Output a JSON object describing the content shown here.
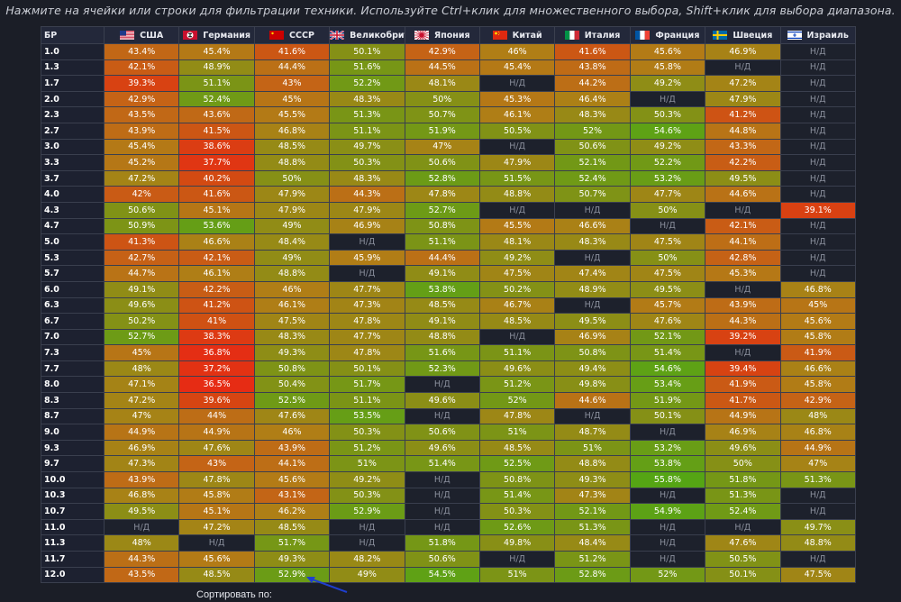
{
  "hint": "Нажмите на ячейки или строки для фильтрации техники. Используйте Ctrl+клик для множественного выбора, Shift+клик для выбора диапазона.",
  "na_label": "Н/Д",
  "br_header": "БР",
  "sort_label": "Сортировать по:",
  "nations": [
    {
      "name": "США",
      "flag": "flag-usa-icon"
    },
    {
      "name": "Германия",
      "flag": "flag-germany-icon"
    },
    {
      "name": "СССР",
      "flag": "flag-ussr-icon"
    },
    {
      "name": "Великобритания",
      "flag": "flag-uk-icon"
    },
    {
      "name": "Япония",
      "flag": "flag-japan-icon"
    },
    {
      "name": "Китай",
      "flag": "flag-china-icon"
    },
    {
      "name": "Италия",
      "flag": "flag-italy-icon"
    },
    {
      "name": "Франция",
      "flag": "flag-france-icon"
    },
    {
      "name": "Швеция",
      "flag": "flag-sweden-icon"
    },
    {
      "name": "Израиль",
      "flag": "flag-israel-icon"
    }
  ],
  "rows": [
    {
      "br": "1.0",
      "values": [
        "43.4%",
        "45.4%",
        "41.6%",
        "50.1%",
        "42.9%",
        "46%",
        "41.6%",
        "45.6%",
        "46.9%",
        null
      ]
    },
    {
      "br": "1.3",
      "values": [
        "42.1%",
        "48.9%",
        "44.4%",
        "51.6%",
        "44.5%",
        "45.4%",
        "43.8%",
        "45.8%",
        null,
        null
      ]
    },
    {
      "br": "1.7",
      "values": [
        "39.3%",
        "51.1%",
        "43%",
        "52.2%",
        "48.1%",
        null,
        "44.2%",
        "49.2%",
        "47.2%",
        null
      ]
    },
    {
      "br": "2.0",
      "values": [
        "42.9%",
        "52.4%",
        "45%",
        "48.3%",
        "50%",
        "45.3%",
        "46.4%",
        null,
        "47.9%",
        null
      ]
    },
    {
      "br": "2.3",
      "values": [
        "43.5%",
        "43.6%",
        "45.5%",
        "51.3%",
        "50.7%",
        "46.1%",
        "48.3%",
        "50.3%",
        "41.2%",
        null
      ]
    },
    {
      "br": "2.7",
      "values": [
        "43.9%",
        "41.5%",
        "46.8%",
        "51.1%",
        "51.9%",
        "50.5%",
        "52%",
        "54.6%",
        "44.8%",
        null
      ]
    },
    {
      "br": "3.0",
      "values": [
        "45.4%",
        "38.6%",
        "48.5%",
        "49.7%",
        "47%",
        null,
        "50.6%",
        "49.2%",
        "43.3%",
        null
      ]
    },
    {
      "br": "3.3",
      "values": [
        "45.2%",
        "37.7%",
        "48.8%",
        "50.3%",
        "50.6%",
        "47.9%",
        "52.1%",
        "52.2%",
        "42.2%",
        null
      ]
    },
    {
      "br": "3.7",
      "values": [
        "47.2%",
        "40.2%",
        "50%",
        "48.3%",
        "52.8%",
        "51.5%",
        "52.4%",
        "53.2%",
        "49.5%",
        null
      ]
    },
    {
      "br": "4.0",
      "values": [
        "42%",
        "41.6%",
        "47.9%",
        "44.3%",
        "47.8%",
        "48.8%",
        "50.7%",
        "47.7%",
        "44.6%",
        null
      ]
    },
    {
      "br": "4.3",
      "values": [
        "50.6%",
        "45.1%",
        "47.9%",
        "47.9%",
        "52.7%",
        null,
        null,
        "50%",
        null,
        "39.1%"
      ]
    },
    {
      "br": "4.7",
      "values": [
        "50.9%",
        "53.6%",
        "49%",
        "46.9%",
        "50.8%",
        "45.5%",
        "46.6%",
        null,
        "42.1%",
        null
      ]
    },
    {
      "br": "5.0",
      "values": [
        "41.3%",
        "46.6%",
        "48.4%",
        null,
        "51.1%",
        "48.1%",
        "48.3%",
        "47.5%",
        "44.1%",
        null
      ]
    },
    {
      "br": "5.3",
      "values": [
        "42.7%",
        "42.1%",
        "49%",
        "45.9%",
        "44.4%",
        "49.2%",
        null,
        "50%",
        "42.8%",
        null
      ]
    },
    {
      "br": "5.7",
      "values": [
        "44.7%",
        "46.1%",
        "48.8%",
        null,
        "49.1%",
        "47.5%",
        "47.4%",
        "47.5%",
        "45.3%",
        null
      ]
    },
    {
      "br": "6.0",
      "values": [
        "49.1%",
        "42.2%",
        "46%",
        "47.7%",
        "53.8%",
        "50.2%",
        "48.9%",
        "49.5%",
        null,
        "46.8%"
      ]
    },
    {
      "br": "6.3",
      "values": [
        "49.6%",
        "41.2%",
        "46.1%",
        "47.3%",
        "48.5%",
        "46.7%",
        null,
        "45.7%",
        "43.9%",
        "45%"
      ]
    },
    {
      "br": "6.7",
      "values": [
        "50.2%",
        "41%",
        "47.5%",
        "47.8%",
        "49.1%",
        "48.5%",
        "49.5%",
        "47.6%",
        "44.3%",
        "45.6%"
      ]
    },
    {
      "br": "7.0",
      "values": [
        "52.7%",
        "38.3%",
        "48.3%",
        "47.7%",
        "48.8%",
        null,
        "46.9%",
        "52.1%",
        "39.2%",
        "45.8%"
      ]
    },
    {
      "br": "7.3",
      "values": [
        "45%",
        "36.8%",
        "49.3%",
        "47.8%",
        "51.6%",
        "51.1%",
        "50.8%",
        "51.4%",
        null,
        "41.9%"
      ]
    },
    {
      "br": "7.7",
      "values": [
        "48%",
        "37.2%",
        "50.8%",
        "50.1%",
        "52.3%",
        "49.6%",
        "49.4%",
        "54.6%",
        "39.4%",
        "46.6%"
      ]
    },
    {
      "br": "8.0",
      "values": [
        "47.1%",
        "36.5%",
        "50.4%",
        "51.7%",
        null,
        "51.2%",
        "49.8%",
        "53.4%",
        "41.9%",
        "45.8%"
      ]
    },
    {
      "br": "8.3",
      "values": [
        "47.2%",
        "39.6%",
        "52.5%",
        "51.1%",
        "49.6%",
        "52%",
        "44.6%",
        "51.9%",
        "41.7%",
        "42.9%"
      ]
    },
    {
      "br": "8.7",
      "values": [
        "47%",
        "44%",
        "47.6%",
        "53.5%",
        null,
        "47.8%",
        null,
        "50.1%",
        "44.9%",
        "48%"
      ]
    },
    {
      "br": "9.0",
      "values": [
        "44.9%",
        "44.9%",
        "46%",
        "50.3%",
        "50.6%",
        "51%",
        "48.7%",
        null,
        "46.9%",
        "46.8%"
      ]
    },
    {
      "br": "9.3",
      "values": [
        "46.9%",
        "47.6%",
        "43.9%",
        "51.2%",
        "49.6%",
        "48.5%",
        "51%",
        "53.2%",
        "49.6%",
        "44.9%"
      ]
    },
    {
      "br": "9.7",
      "values": [
        "47.3%",
        "43%",
        "44.1%",
        "51%",
        "51.4%",
        "52.5%",
        "48.8%",
        "53.8%",
        "50%",
        "47%"
      ]
    },
    {
      "br": "10.0",
      "values": [
        "43.9%",
        "47.8%",
        "45.6%",
        "49.2%",
        null,
        "50.8%",
        "49.3%",
        "55.8%",
        "51.8%",
        "51.3%"
      ]
    },
    {
      "br": "10.3",
      "values": [
        "46.8%",
        "45.8%",
        "43.1%",
        "50.3%",
        null,
        "51.4%",
        "47.3%",
        null,
        "51.3%",
        null
      ]
    },
    {
      "br": "10.7",
      "values": [
        "49.5%",
        "45.1%",
        "46.2%",
        "52.9%",
        null,
        "50.3%",
        "52.1%",
        "54.9%",
        "52.4%",
        null
      ]
    },
    {
      "br": "11.0",
      "values": [
        null,
        "47.2%",
        "48.5%",
        null,
        null,
        "52.6%",
        "51.3%",
        null,
        null,
        "49.7%"
      ]
    },
    {
      "br": "11.3",
      "values": [
        "48%",
        null,
        "51.7%",
        null,
        "51.8%",
        "49.8%",
        "48.4%",
        null,
        "47.6%",
        "48.8%"
      ]
    },
    {
      "br": "11.7",
      "values": [
        "44.3%",
        "45.6%",
        "49.3%",
        "48.2%",
        "50.6%",
        null,
        "51.2%",
        null,
        "50.5%",
        null
      ]
    },
    {
      "br": "12.0",
      "values": [
        "43.5%",
        "48.5%",
        "52.9%",
        "49%",
        "54.5%",
        "51%",
        "52.8%",
        "52%",
        "50.1%",
        "47.5%"
      ]
    }
  ]
}
